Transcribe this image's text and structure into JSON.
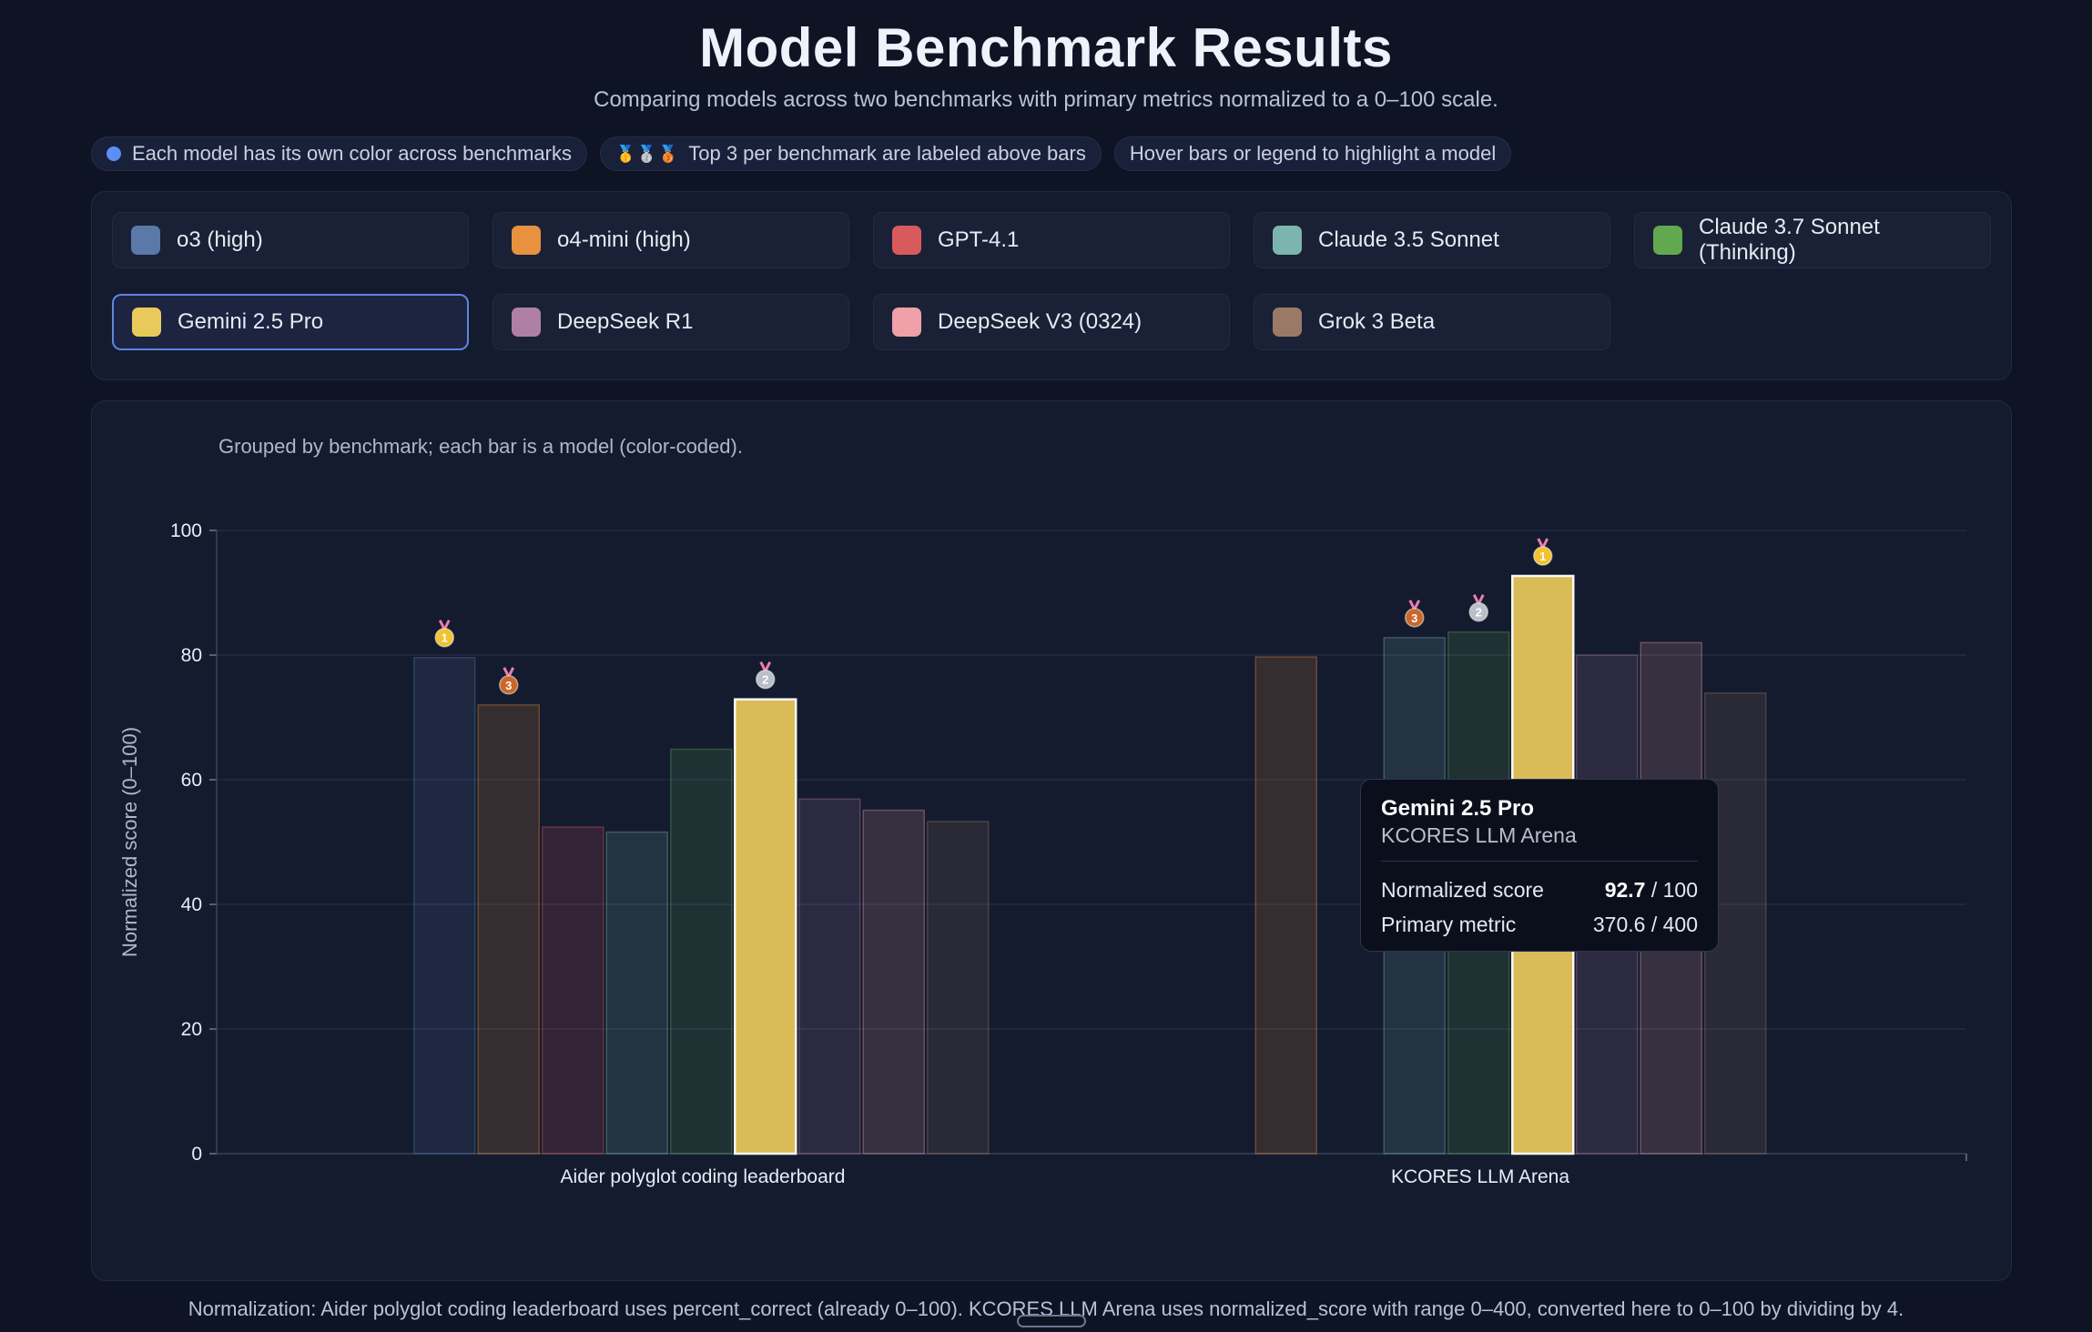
{
  "header": {
    "title": "Model Benchmark Results",
    "subtitle": "Comparing models across two benchmarks with primary metrics normalized to a 0–100 scale."
  },
  "pills": [
    {
      "text": "Each model has its own color across benchmarks"
    },
    {
      "text": "Top 3 per benchmark are labeled above bars",
      "icons": "🥇🥈🥉"
    },
    {
      "text": "Hover bars or legend to highlight a model"
    }
  ],
  "legend": {
    "items": [
      {
        "label": "o3 (high)",
        "color": "#5a78a8"
      },
      {
        "label": "o4-mini (high)",
        "color": "#e8913f"
      },
      {
        "label": "GPT-4.1",
        "color": "#d95a5c"
      },
      {
        "label": "Claude 3.5 Sonnet",
        "color": "#7bb5ae"
      },
      {
        "label": "Claude 3.7 Sonnet (Thinking)",
        "color": "#62a84f"
      },
      {
        "label": "Gemini 2.5 Pro",
        "color": "#eac95b"
      },
      {
        "label": "DeepSeek R1",
        "color": "#b07fa8"
      },
      {
        "label": "DeepSeek V3 (0324)",
        "color": "#f0a0a8"
      },
      {
        "label": "Grok 3 Beta",
        "color": "#9a7a66"
      }
    ],
    "active": "Gemini 2.5 Pro"
  },
  "chart_caption": "Grouped by benchmark; each bar is a model (color-coded).",
  "chart_data": {
    "type": "bar",
    "categories": [
      "Aider polyglot coding leaderboard",
      "KCORES LLM Arena"
    ],
    "ylabel": "Normalized score (0–100)",
    "ylim": [
      0,
      100
    ],
    "yticks": [
      0,
      20,
      40,
      60,
      80,
      100
    ],
    "grid": true,
    "highlighted_series": "Gemini 2.5 Pro",
    "series": [
      {
        "name": "o3 (high)",
        "values": [
          79.6,
          null
        ]
      },
      {
        "name": "o4-mini (high)",
        "values": [
          72.0,
          79.7
        ]
      },
      {
        "name": "GPT-4.1",
        "values": [
          52.4,
          null
        ]
      },
      {
        "name": "Claude 3.5 Sonnet",
        "values": [
          51.6,
          82.8
        ]
      },
      {
        "name": "Claude 3.7 Sonnet (Thinking)",
        "values": [
          64.9,
          83.7
        ]
      },
      {
        "name": "Gemini 2.5 Pro",
        "values": [
          72.9,
          92.7
        ]
      },
      {
        "name": "DeepSeek R1",
        "values": [
          56.9,
          80.0
        ]
      },
      {
        "name": "DeepSeek V3 (0324)",
        "values": [
          55.1,
          82.0
        ]
      },
      {
        "name": "Grok 3 Beta",
        "values": [
          53.3,
          73.9
        ]
      }
    ],
    "medals": [
      {
        "category": 0,
        "series": "o3 (high)",
        "rank": 1
      },
      {
        "category": 0,
        "series": "Gemini 2.5 Pro",
        "rank": 2
      },
      {
        "category": 0,
        "series": "o4-mini (high)",
        "rank": 3
      },
      {
        "category": 1,
        "series": "Gemini 2.5 Pro",
        "rank": 1
      },
      {
        "category": 1,
        "series": "Claude 3.7 Sonnet (Thinking)",
        "rank": 2
      },
      {
        "category": 1,
        "series": "Claude 3.5 Sonnet",
        "rank": 3
      }
    ]
  },
  "tooltip": {
    "model": "Gemini 2.5 Pro",
    "benchmark": "KCORES LLM Arena",
    "rows": [
      {
        "label": "Normalized score",
        "value": "92.7",
        "suffix": " / 100"
      },
      {
        "label": "Primary metric",
        "value": "370.6 / 400",
        "suffix": ""
      }
    ]
  },
  "footnote": "Normalization: Aider polyglot coding leaderboard uses percent_correct (already 0–100). KCORES LLM Arena uses normalized_score with range 0–400, converted here to 0–100 by dividing by 4."
}
